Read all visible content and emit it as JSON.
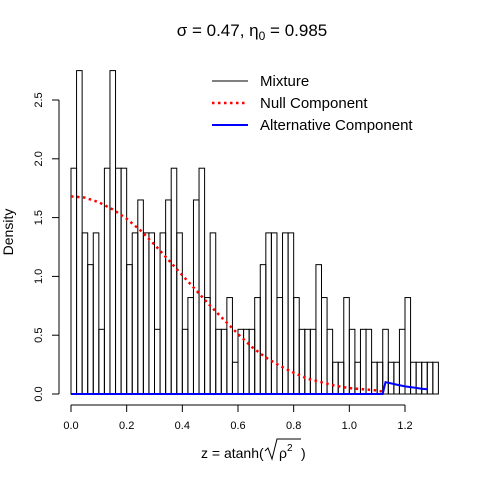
{
  "chart_data": {
    "type": "histogram",
    "title": {
      "sigma_symbol": "σ",
      "eq1": " = 0.47, ",
      "eta_symbol": "η",
      "eta_sub": "0",
      "eq2": " = 0.985"
    },
    "ylabel": "Density",
    "xlabel": {
      "prefix": "z = atanh(",
      "rho": "ρ",
      "sup": "2",
      "suffix": ")"
    },
    "xlim": [
      0,
      1.3
    ],
    "ylim": [
      0,
      2.75
    ],
    "x_ticks": [
      0.0,
      0.2,
      0.4,
      0.6,
      0.8,
      1.0,
      1.2
    ],
    "x_tick_labels": [
      "0.0",
      "0.2",
      "0.4",
      "0.6",
      "0.8",
      "1.0",
      "1.2"
    ],
    "y_ticks": [
      0.0,
      0.5,
      1.0,
      1.5,
      2.0,
      2.5
    ],
    "y_tick_labels": [
      "0.0",
      "0.5",
      "1.0",
      "1.5",
      "2.0",
      "2.5"
    ],
    "bin_width": 0.02,
    "bin_start": 0.0,
    "bin_values": [
      1.92,
      2.75,
      1.37,
      1.1,
      1.37,
      0.55,
      1.92,
      2.75,
      1.92,
      1.92,
      1.1,
      1.37,
      1.65,
      1.37,
      1.37,
      0.55,
      1.37,
      1.65,
      1.92,
      1.37,
      0.55,
      0.82,
      1.65,
      1.92,
      0.82,
      1.37,
      0.55,
      0.55,
      0.82,
      0.27,
      0.55,
      0.55,
      0.55,
      0.82,
      1.1,
      1.37,
      1.37,
      0.82,
      1.37,
      1.37,
      0.82,
      0.55,
      0.55,
      0.55,
      1.1,
      0.82,
      0.55,
      0.27,
      0.27,
      0.82,
      0.55,
      0.27,
      0.55,
      0.55,
      0.27,
      0.27,
      0.55,
      0.27,
      0.27,
      0.55,
      0.82,
      0.27,
      0.27,
      0.27,
      0.27,
      0.27
    ],
    "series": [
      {
        "name": "Null Component",
        "color": "#ff0000",
        "style": "dotted",
        "x": [
          0.0,
          0.05,
          0.1,
          0.15,
          0.2,
          0.25,
          0.3,
          0.35,
          0.4,
          0.45,
          0.5,
          0.55,
          0.6,
          0.65,
          0.7,
          0.75,
          0.8,
          0.85,
          0.9,
          0.95,
          1.0,
          1.05,
          1.1,
          1.12
        ],
        "y": [
          1.68,
          1.67,
          1.63,
          1.57,
          1.49,
          1.39,
          1.27,
          1.14,
          1.01,
          0.88,
          0.75,
          0.63,
          0.51,
          0.4,
          0.31,
          0.24,
          0.18,
          0.13,
          0.1,
          0.07,
          0.05,
          0.04,
          0.03,
          0.02
        ]
      },
      {
        "name": "Alternative Component",
        "color": "#0000ff",
        "style": "solid",
        "x": [
          0.0,
          0.5,
          1.0,
          1.12,
          1.13,
          1.15,
          1.17,
          1.2,
          1.23,
          1.26,
          1.28
        ],
        "y": [
          0.0,
          0.0,
          0.0,
          0.0,
          0.1,
          0.09,
          0.08,
          0.065,
          0.055,
          0.045,
          0.04
        ]
      },
      {
        "name": "Mixture",
        "color": "#000000",
        "style": "solid"
      }
    ],
    "legend_position": "top-right"
  }
}
